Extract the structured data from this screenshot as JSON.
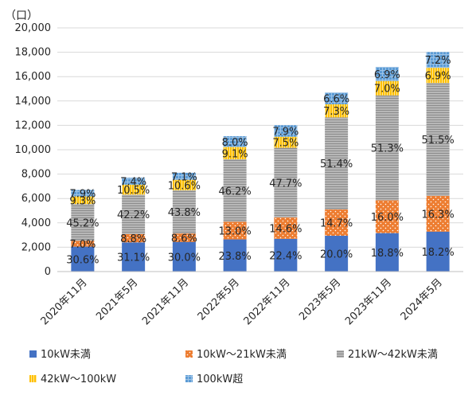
{
  "chart_data": {
    "type": "bar",
    "stacked": true,
    "y_unit": "（口）",
    "ylim": [
      0,
      20000
    ],
    "yticks": [
      "0",
      "2,000",
      "4,000",
      "6,000",
      "8,000",
      "10,000",
      "12,000",
      "14,000",
      "16,000",
      "18,000",
      "20,000"
    ],
    "categories": [
      "2020年11月",
      "2021年5月",
      "2021年11月",
      "2022年5月",
      "2022年11月",
      "2023年5月",
      "2023年11月",
      "2024年5月"
    ],
    "totals": [
      6700,
      7700,
      8100,
      11100,
      12000,
      14700,
      16800,
      18000
    ],
    "series": [
      {
        "name": "10kW未満",
        "color": "#4472c4",
        "pattern": "solid",
        "percent_labels": [
          "30.6%",
          "31.1%",
          "30.0%",
          "23.8%",
          "22.4%",
          "20.0%",
          "18.8%",
          "18.2%"
        ],
        "values": [
          2050,
          2395,
          2430,
          2642,
          2688,
          2940,
          3158,
          3276
        ]
      },
      {
        "name": "10kW～21kW未満",
        "color": "#ed7d31",
        "pattern": "dots",
        "percent_labels": [
          "7.0%",
          "8.8%",
          "8.6%",
          "13.0%",
          "14.6%",
          "14.7%",
          "16.0%",
          "16.3%"
        ],
        "values": [
          469,
          678,
          697,
          1443,
          1752,
          2161,
          2688,
          2934
        ]
      },
      {
        "name": "21kW～42kW未満",
        "color": "#a5a5a5",
        "pattern": "hlines",
        "percent_labels": [
          "45.2%",
          "42.2%",
          "43.8%",
          "46.2%",
          "47.7%",
          "51.4%",
          "51.3%",
          "51.5%"
        ],
        "values": [
          3028,
          3249,
          3548,
          5128,
          5724,
          7556,
          8618,
          9270
        ]
      },
      {
        "name": "42kW～100kW",
        "color": "#ffc000",
        "pattern": "vlines",
        "percent_labels": [
          "9.3%",
          "10.5%",
          "10.6%",
          "9.1%",
          "7.5%",
          "7.3%",
          "7.0%",
          "6.9%"
        ],
        "values": [
          623,
          809,
          859,
          1010,
          900,
          1073,
          1176,
          1242
        ]
      },
      {
        "name": "100kW超",
        "color": "#5b9bd5",
        "pattern": "grid",
        "percent_labels": [
          "7.9%",
          "7.4%",
          "7.1%",
          "8.0%",
          "7.9%",
          "6.6%",
          "6.9%",
          "7.2%"
        ],
        "values": [
          529,
          570,
          575,
          888,
          948,
          970,
          1159,
          1296
        ]
      }
    ]
  }
}
